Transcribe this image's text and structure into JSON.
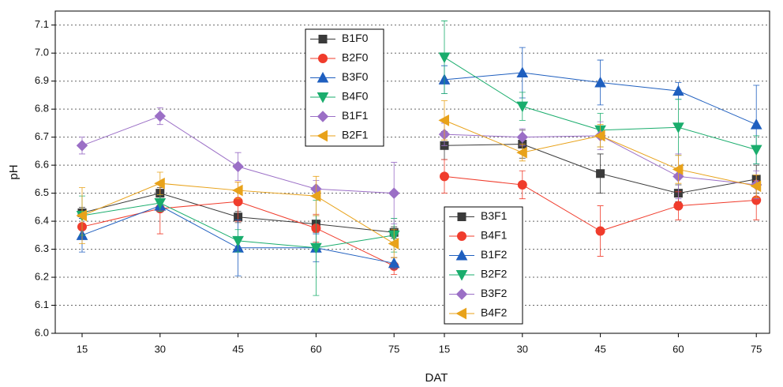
{
  "chart_data": {
    "type": "line",
    "x_label": "DAT",
    "y_label": "pH",
    "categories": [
      "15",
      "30",
      "45",
      "60",
      "75",
      "15",
      "30",
      "45",
      "60",
      "75"
    ],
    "ylim": [
      6.0,
      7.15
    ],
    "yticks": [
      {
        "value": 6.0,
        "label": "6.0"
      },
      6.1,
      6.2,
      6.3,
      6.4,
      6.5,
      6.6,
      6.7,
      6.8,
      6.9,
      {
        "value": 7.0,
        "label": "7.0"
      },
      7.1
    ],
    "grid": true,
    "series": [
      {
        "name": "B1F0",
        "color": "#3a3a3a",
        "marker": "square",
        "values": [
          6.43,
          6.5,
          6.415,
          6.39,
          6.36,
          null,
          null,
          null,
          null,
          null
        ],
        "errors": [
          0.02,
          0.02,
          0.02,
          0.03,
          0.02,
          null,
          null,
          null,
          null,
          null
        ]
      },
      {
        "name": "B2F0",
        "color": "#f03c2c",
        "marker": "circle",
        "values": [
          6.38,
          6.445,
          6.47,
          6.375,
          6.24,
          null,
          null,
          null,
          null,
          null
        ],
        "errors": [
          0.03,
          0.09,
          0.07,
          0.05,
          0.03,
          null,
          null,
          null,
          null,
          null
        ]
      },
      {
        "name": "B3F0",
        "color": "#1f5fbf",
        "marker": "triangle-up",
        "values": [
          6.35,
          6.455,
          6.305,
          6.305,
          6.25,
          null,
          null,
          null,
          null,
          null
        ],
        "errors": [
          0.06,
          0.02,
          0.1,
          0.05,
          0.02,
          null,
          null,
          null,
          null,
          null
        ]
      },
      {
        "name": "B4F0",
        "color": "#1aad6d",
        "marker": "triangle-down",
        "values": [
          6.42,
          6.465,
          6.33,
          6.305,
          6.35,
          null,
          null,
          null,
          null,
          null
        ],
        "errors": [
          0.07,
          0.03,
          0.04,
          0.17,
          0.06,
          null,
          null,
          null,
          null,
          null
        ]
      },
      {
        "name": "B1F1",
        "color": "#9b6fc6",
        "marker": "diamond",
        "values": [
          6.67,
          6.775,
          6.595,
          6.515,
          6.5,
          null,
          null,
          null,
          null,
          null
        ],
        "errors": [
          0.03,
          0.03,
          0.05,
          0.03,
          0.11,
          null,
          null,
          null,
          null,
          null
        ]
      },
      {
        "name": "B2F1",
        "color": "#e8a21a",
        "marker": "triangle-left",
        "values": [
          6.42,
          6.535,
          6.51,
          6.49,
          6.32,
          null,
          null,
          null,
          null,
          null
        ],
        "errors": [
          0.1,
          0.04,
          0.03,
          0.07,
          0.05,
          null,
          null,
          null,
          null,
          null
        ]
      },
      {
        "name": "B3F1",
        "color": "#3a3a3a",
        "marker": "square",
        "values": [
          null,
          null,
          null,
          null,
          null,
          6.67,
          6.675,
          6.57,
          6.5,
          6.55
        ],
        "errors": [
          null,
          null,
          null,
          null,
          null,
          0.05,
          0.05,
          0.07,
          0.03,
          0.05
        ]
      },
      {
        "name": "B4F1",
        "color": "#f03c2c",
        "marker": "circle",
        "values": [
          null,
          null,
          null,
          null,
          null,
          6.56,
          6.53,
          6.365,
          6.455,
          6.475
        ],
        "errors": [
          null,
          null,
          null,
          null,
          null,
          0.06,
          0.05,
          0.09,
          0.05,
          0.07
        ]
      },
      {
        "name": "B1F2",
        "color": "#1f5fbf",
        "marker": "triangle-up",
        "values": [
          null,
          null,
          null,
          null,
          null,
          6.905,
          6.93,
          6.895,
          6.865,
          6.745
        ],
        "errors": [
          null,
          null,
          null,
          null,
          null,
          0.05,
          0.09,
          0.08,
          0.03,
          0.14
        ]
      },
      {
        "name": "B2F2",
        "color": "#1aad6d",
        "marker": "triangle-down",
        "values": [
          null,
          null,
          null,
          null,
          null,
          6.985,
          6.81,
          6.725,
          6.735,
          6.655
        ],
        "errors": [
          null,
          null,
          null,
          null,
          null,
          0.13,
          0.05,
          0.06,
          0.1,
          0.05
        ]
      },
      {
        "name": "B3F2",
        "color": "#9b6fc6",
        "marker": "diamond",
        "values": [
          null,
          null,
          null,
          null,
          null,
          6.71,
          6.7,
          6.705,
          6.56,
          6.53
        ],
        "errors": [
          null,
          null,
          null,
          null,
          null,
          0.04,
          0.03,
          0.05,
          0.08,
          0.05
        ]
      },
      {
        "name": "B4F2",
        "color": "#e8a21a",
        "marker": "triangle-left",
        "values": [
          null,
          null,
          null,
          null,
          null,
          6.76,
          6.645,
          6.705,
          6.585,
          6.525
        ],
        "errors": [
          null,
          null,
          null,
          null,
          null,
          0.07,
          0.03,
          0.04,
          0.05,
          0.04
        ]
      }
    ]
  }
}
